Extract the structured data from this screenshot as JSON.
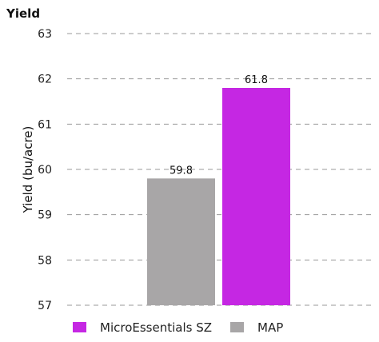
{
  "colors": {
    "microessentials": "#c527e3",
    "map": "#a8a6a7"
  },
  "chart_data": {
    "type": "bar",
    "title": "Yield",
    "ylabel": "Yield (bu/acre)",
    "xlabel": "",
    "ylim": [
      57,
      63
    ],
    "yticks": [
      "57",
      "58",
      "59",
      "60",
      "61",
      "62",
      "63"
    ],
    "grid": true,
    "legend_position": "bottom-left",
    "series": [
      {
        "name": "MAP",
        "value": 59.8,
        "label": "59.8",
        "color": "#a8a6a7"
      },
      {
        "name": "MicroEssentials SZ",
        "value": 61.8,
        "label": "61.8",
        "color": "#c527e3"
      }
    ],
    "legend": [
      {
        "name": "MicroEssentials SZ",
        "color": "#c527e3"
      },
      {
        "name": "MAP",
        "color": "#a8a6a7"
      }
    ]
  }
}
